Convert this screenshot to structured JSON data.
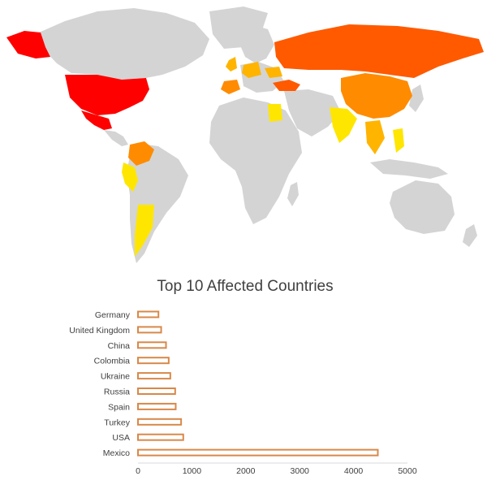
{
  "colors": {
    "ocean": "#ffffff",
    "land_unaffected": "#d4d4d4",
    "level_highest": "#ff0000",
    "level_high": "#ff5a00",
    "level_mid": "#ff8c00",
    "level_low": "#ffb400",
    "level_lowest": "#ffe600",
    "bar_outline": "#d8894a",
    "axis": "#d9d9d9"
  },
  "map": {
    "highlighted_countries": [
      {
        "name": "USA",
        "level": "level_highest"
      },
      {
        "name": "Mexico",
        "level": "level_highest"
      },
      {
        "name": "Russia",
        "level": "level_high"
      },
      {
        "name": "Turkey",
        "level": "level_high"
      },
      {
        "name": "China",
        "level": "level_mid"
      },
      {
        "name": "Colombia",
        "level": "level_mid"
      },
      {
        "name": "Spain",
        "level": "level_mid"
      },
      {
        "name": "Germany",
        "level": "level_low"
      },
      {
        "name": "United Kingdom",
        "level": "level_low"
      },
      {
        "name": "Ukraine",
        "level": "level_low"
      }
    ]
  },
  "chart_data": {
    "type": "bar",
    "orientation": "horizontal",
    "title": "Top 10 Affected Countries",
    "categories": [
      "Germany",
      "United Kingdom",
      "China",
      "Colombia",
      "Ukraine",
      "Russia",
      "Spain",
      "Turkey",
      "USA",
      "Mexico"
    ],
    "values": [
      380,
      430,
      520,
      570,
      600,
      690,
      700,
      800,
      840,
      4450
    ],
    "xlim": [
      0,
      5000
    ],
    "xticks": [
      0,
      1000,
      2000,
      3000,
      4000,
      5000
    ],
    "xlabel": "",
    "ylabel": "",
    "grid": false,
    "legend": "none"
  }
}
